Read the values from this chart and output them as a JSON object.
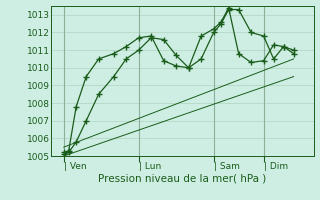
{
  "xlabel": "Pression niveau de la mer( hPa )",
  "bg_color": "#ceeee4",
  "grid_color": "#b0d4c0",
  "line_color": "#1a5c1a",
  "ylim": [
    1005,
    1013.5
  ],
  "yticks": [
    1005,
    1006,
    1007,
    1008,
    1009,
    1010,
    1011,
    1012,
    1013
  ],
  "xtick_labels": [
    "| Ven",
    "| Lun",
    "| Sam",
    "| Dim"
  ],
  "xtick_positions": [
    0.5,
    3.5,
    6.5,
    8.5
  ],
  "xlim": [
    0,
    10.5
  ],
  "series1_x": [
    0.5,
    0.7,
    1.0,
    1.4,
    1.9,
    2.5,
    3.0,
    3.5,
    4.0,
    4.5,
    5.0,
    5.5,
    6.0,
    6.5,
    6.8,
    7.1,
    7.5,
    8.0,
    8.5,
    8.9,
    9.3,
    9.7
  ],
  "series1_y": [
    1005.1,
    1005.2,
    1005.8,
    1007.0,
    1008.5,
    1009.5,
    1010.5,
    1011.0,
    1011.7,
    1011.6,
    1010.7,
    1010.0,
    1010.5,
    1012.0,
    1012.5,
    1013.3,
    1013.3,
    1012.0,
    1011.8,
    1010.5,
    1011.2,
    1011.0
  ],
  "series2_x": [
    0.5,
    0.7,
    1.0,
    1.4,
    1.9,
    2.5,
    3.0,
    3.5,
    4.0,
    4.5,
    5.0,
    5.5,
    6.0,
    6.5,
    6.8,
    7.1,
    7.5,
    8.0,
    8.5,
    8.9,
    9.3,
    9.7
  ],
  "series2_y": [
    1005.2,
    1005.3,
    1007.8,
    1009.5,
    1010.5,
    1010.8,
    1011.2,
    1011.7,
    1011.8,
    1010.4,
    1010.1,
    1010.0,
    1011.8,
    1012.2,
    1012.6,
    1013.4,
    1010.8,
    1010.3,
    1010.4,
    1011.3,
    1011.2,
    1010.8
  ],
  "trend1_x": [
    0.5,
    9.7
  ],
  "trend1_y": [
    1005.5,
    1010.5
  ],
  "trend2_x": [
    0.5,
    9.7
  ],
  "trend2_y": [
    1005.0,
    1009.5
  ]
}
